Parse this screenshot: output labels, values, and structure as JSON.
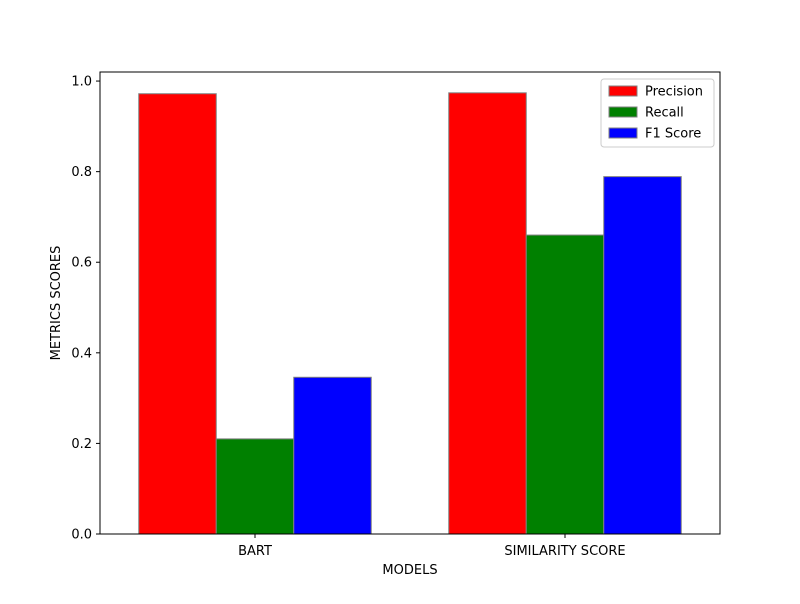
{
  "chart_data": {
    "type": "bar",
    "title": "",
    "xlabel": "MODELS",
    "ylabel": "METRICS SCORES",
    "categories": [
      "BART",
      "SIMILARITY SCORE"
    ],
    "series": [
      {
        "name": "Precision",
        "values": [
          0.972,
          0.974
        ],
        "color": "#ff0000"
      },
      {
        "name": "Recall",
        "values": [
          0.21,
          0.66
        ],
        "color": "#008000"
      },
      {
        "name": "F1 Score",
        "values": [
          0.346,
          0.789
        ],
        "color": "#0000ff"
      }
    ],
    "ylim": [
      0,
      1.02
    ],
    "yticks": [
      0.0,
      0.2,
      0.4,
      0.6,
      0.8,
      1.0
    ],
    "ytick_labels": [
      "0.0",
      "0.2",
      "0.4",
      "0.6",
      "0.8",
      "1.0"
    ],
    "grid": false,
    "legend_position": "top-right",
    "bar_edge_color": "#808080"
  }
}
